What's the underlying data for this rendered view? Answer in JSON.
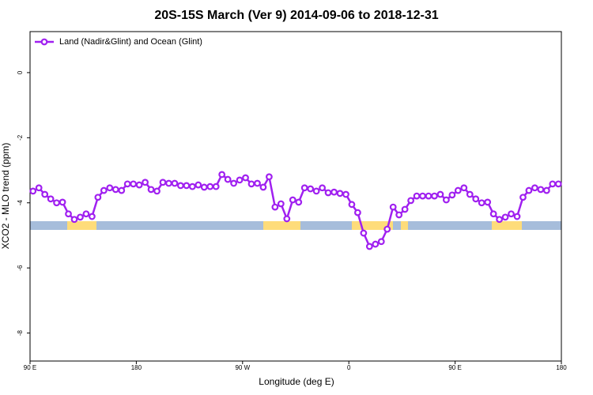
{
  "chart_data": {
    "type": "line",
    "title": "20S-15S March (Ver 9)   2014-09-06 to 2018-12-31",
    "x_label": "Longitude (deg E)",
    "y_label": "XCO2 - MLO trend (ppm)",
    "xlim": [
      90,
      540
    ],
    "xticks": [
      {
        "value": 90,
        "label": "90 E"
      },
      {
        "value": 180,
        "label": "180"
      },
      {
        "value": 270,
        "label": "90 W"
      },
      {
        "value": 360,
        "label": "0"
      },
      {
        "value": 450,
        "label": "90 E"
      },
      {
        "value": 540,
        "label": "180"
      }
    ],
    "ylim": [
      -8.86,
      1.26
    ],
    "yticks": [
      0,
      -2,
      -4,
      -6,
      -8
    ],
    "legend": "top-left",
    "x": [
      92.5,
      97.5,
      102.5,
      107.5,
      112.5,
      117.5,
      122.5,
      127.5,
      132.5,
      137.5,
      142.5,
      147.5,
      152.5,
      157.5,
      162.5,
      167.5,
      172.5,
      177.5,
      182.5,
      187.5,
      192.5,
      197.5,
      202.5,
      207.5,
      212.5,
      217.5,
      222.5,
      227.5,
      232.5,
      237.5,
      242.5,
      247.5,
      252.5,
      257.5,
      262.5,
      267.5,
      272.5,
      277.5,
      282.5,
      287.5,
      292.5,
      297.5,
      302.5,
      307.5,
      312.5,
      317.5,
      322.5,
      327.5,
      332.5,
      337.5,
      342.5,
      347.5,
      352.5,
      357.5,
      362.5,
      367.5,
      372.5,
      377.5,
      382.5,
      387.5,
      392.5,
      397.5,
      402.5,
      407.5,
      412.5,
      417.5,
      422.5,
      427.5,
      432.5,
      437.5,
      442.5,
      447.5,
      452.5,
      457.5,
      462.5,
      467.5,
      472.5,
      477.5,
      482.5,
      487.5,
      492.5,
      497.5,
      502.5,
      507.5,
      512.5,
      517.5,
      522.5,
      527.5,
      532.5,
      537.5
    ],
    "series": [
      {
        "name": "Land (Nadir&Glint) and Ocean (Glint)",
        "color": "#a020f0",
        "values": [
          -3.64,
          -3.54,
          -3.74,
          -3.88,
          -4.0,
          -3.98,
          -4.34,
          -4.51,
          -4.44,
          -4.34,
          -4.42,
          -3.83,
          -3.62,
          -3.54,
          -3.59,
          -3.62,
          -3.42,
          -3.42,
          -3.45,
          -3.37,
          -3.59,
          -3.64,
          -3.37,
          -3.4,
          -3.4,
          -3.47,
          -3.47,
          -3.5,
          -3.45,
          -3.52,
          -3.5,
          -3.5,
          -3.13,
          -3.28,
          -3.4,
          -3.3,
          -3.23,
          -3.42,
          -3.4,
          -3.52,
          -3.2,
          -4.13,
          -4.03,
          -4.49,
          -3.91,
          -3.98,
          -3.54,
          -3.57,
          -3.64,
          -3.54,
          -3.69,
          -3.67,
          -3.71,
          -3.74,
          -4.05,
          -4.3,
          -4.93,
          -5.34,
          -5.27,
          -5.19,
          -4.81,
          -4.13,
          -4.37,
          -4.2,
          -3.93,
          -3.79,
          -3.79,
          -3.79,
          -3.79,
          -3.74,
          -3.91,
          -3.76,
          -3.62,
          -3.54,
          -3.74,
          -3.88,
          -4.0,
          -3.98,
          -4.34,
          -4.51,
          -4.44,
          -4.34,
          -4.42,
          -3.83,
          -3.62,
          -3.54,
          -3.59,
          -3.62,
          -3.42,
          -3.42
        ]
      }
    ]
  }
}
